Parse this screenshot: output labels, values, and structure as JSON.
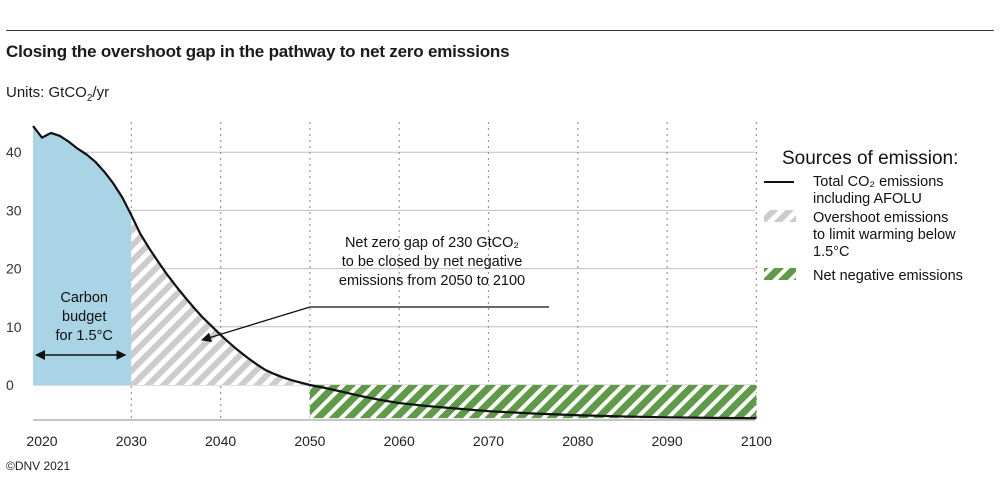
{
  "header": {
    "title": "Closing the overshoot gap in the pathway to net zero emissions",
    "units_prefix": "Units: ",
    "units_main": "GtCO",
    "units_sub": "2",
    "units_suffix": "/yr"
  },
  "footer": {
    "copyright": "©DNV 2021"
  },
  "colors": {
    "carbon_budget": "#a9d4e5",
    "overshoot_hatch": "#cccccc",
    "net_negative_hatch": "#5e9a47",
    "line": "#111111",
    "grid": "#bfbfbf"
  },
  "chart_data": {
    "type": "area",
    "xlim": [
      2019,
      2100
    ],
    "ylim": [
      -6,
      45
    ],
    "x_ticks": [
      2020,
      2030,
      2040,
      2050,
      2060,
      2070,
      2080,
      2090,
      2100
    ],
    "y_ticks": [
      0,
      10,
      20,
      30,
      40
    ],
    "grid": {
      "horizontal": "solid",
      "vertical": "dotted"
    },
    "series": [
      {
        "name": "Total CO2 emissions including AFOLU",
        "style": "line",
        "points": [
          [
            2019,
            44.5
          ],
          [
            2020,
            42.5
          ],
          [
            2021,
            43.3
          ],
          [
            2022,
            42.8
          ],
          [
            2023,
            41.8
          ],
          [
            2024,
            40.6
          ],
          [
            2025,
            39.6
          ],
          [
            2026,
            38.3
          ],
          [
            2027,
            36.6
          ],
          [
            2028,
            34.6
          ],
          [
            2029,
            32.2
          ],
          [
            2030,
            29.2
          ],
          [
            2031,
            26.0
          ],
          [
            2032,
            23.5
          ],
          [
            2033,
            21.2
          ],
          [
            2034,
            19.0
          ],
          [
            2035,
            17.0
          ],
          [
            2036,
            15.1
          ],
          [
            2037,
            13.3
          ],
          [
            2038,
            11.6
          ],
          [
            2039,
            10.1
          ],
          [
            2040,
            8.6
          ],
          [
            2041,
            7.2
          ],
          [
            2042,
            5.9
          ],
          [
            2043,
            4.7
          ],
          [
            2044,
            3.6
          ],
          [
            2045,
            2.6
          ],
          [
            2046,
            1.9
          ],
          [
            2047,
            1.3
          ],
          [
            2048,
            0.8
          ],
          [
            2049,
            0.4
          ],
          [
            2050,
            0.0
          ],
          [
            2052,
            -0.6
          ],
          [
            2054,
            -1.3
          ],
          [
            2056,
            -2.0
          ],
          [
            2058,
            -2.6
          ],
          [
            2060,
            -3.1
          ],
          [
            2063,
            -3.6
          ],
          [
            2066,
            -4.0
          ],
          [
            2070,
            -4.5
          ],
          [
            2075,
            -4.9
          ],
          [
            2080,
            -5.2
          ],
          [
            2085,
            -5.4
          ],
          [
            2090,
            -5.55
          ],
          [
            2095,
            -5.65
          ],
          [
            2100,
            -5.7
          ]
        ]
      },
      {
        "name": "Overshoot emissions to limit warming below 1.5°C",
        "style": "hatched-grey",
        "x_range": [
          2030,
          2050
        ]
      },
      {
        "name": "Net negative emissions",
        "style": "hatched-green",
        "x_range": [
          2050,
          2100
        ]
      },
      {
        "name": "Carbon budget for 1.5°C",
        "style": "filled-blue",
        "x_range": [
          2019,
          2030
        ]
      }
    ],
    "legend": {
      "title": "Sources of emission:",
      "placement": "right",
      "items": [
        {
          "lines": [
            "Total CO₂ emissions",
            "including AFOLU"
          ],
          "swatch": "line"
        },
        {
          "lines": [
            "Overshoot emissions",
            "to limit warming below",
            "1.5°C"
          ],
          "swatch": "hatched-grey"
        },
        {
          "lines": [
            "Net negative emissions"
          ],
          "swatch": "hatched-green"
        }
      ]
    },
    "annotations": {
      "budget_label": [
        "Carbon",
        "budget",
        "for 1.5°C"
      ],
      "gap_label": [
        "Net zero gap of 230 GtCO₂",
        "to be closed by net negative",
        "emissions from 2050 to 2100"
      ]
    }
  }
}
